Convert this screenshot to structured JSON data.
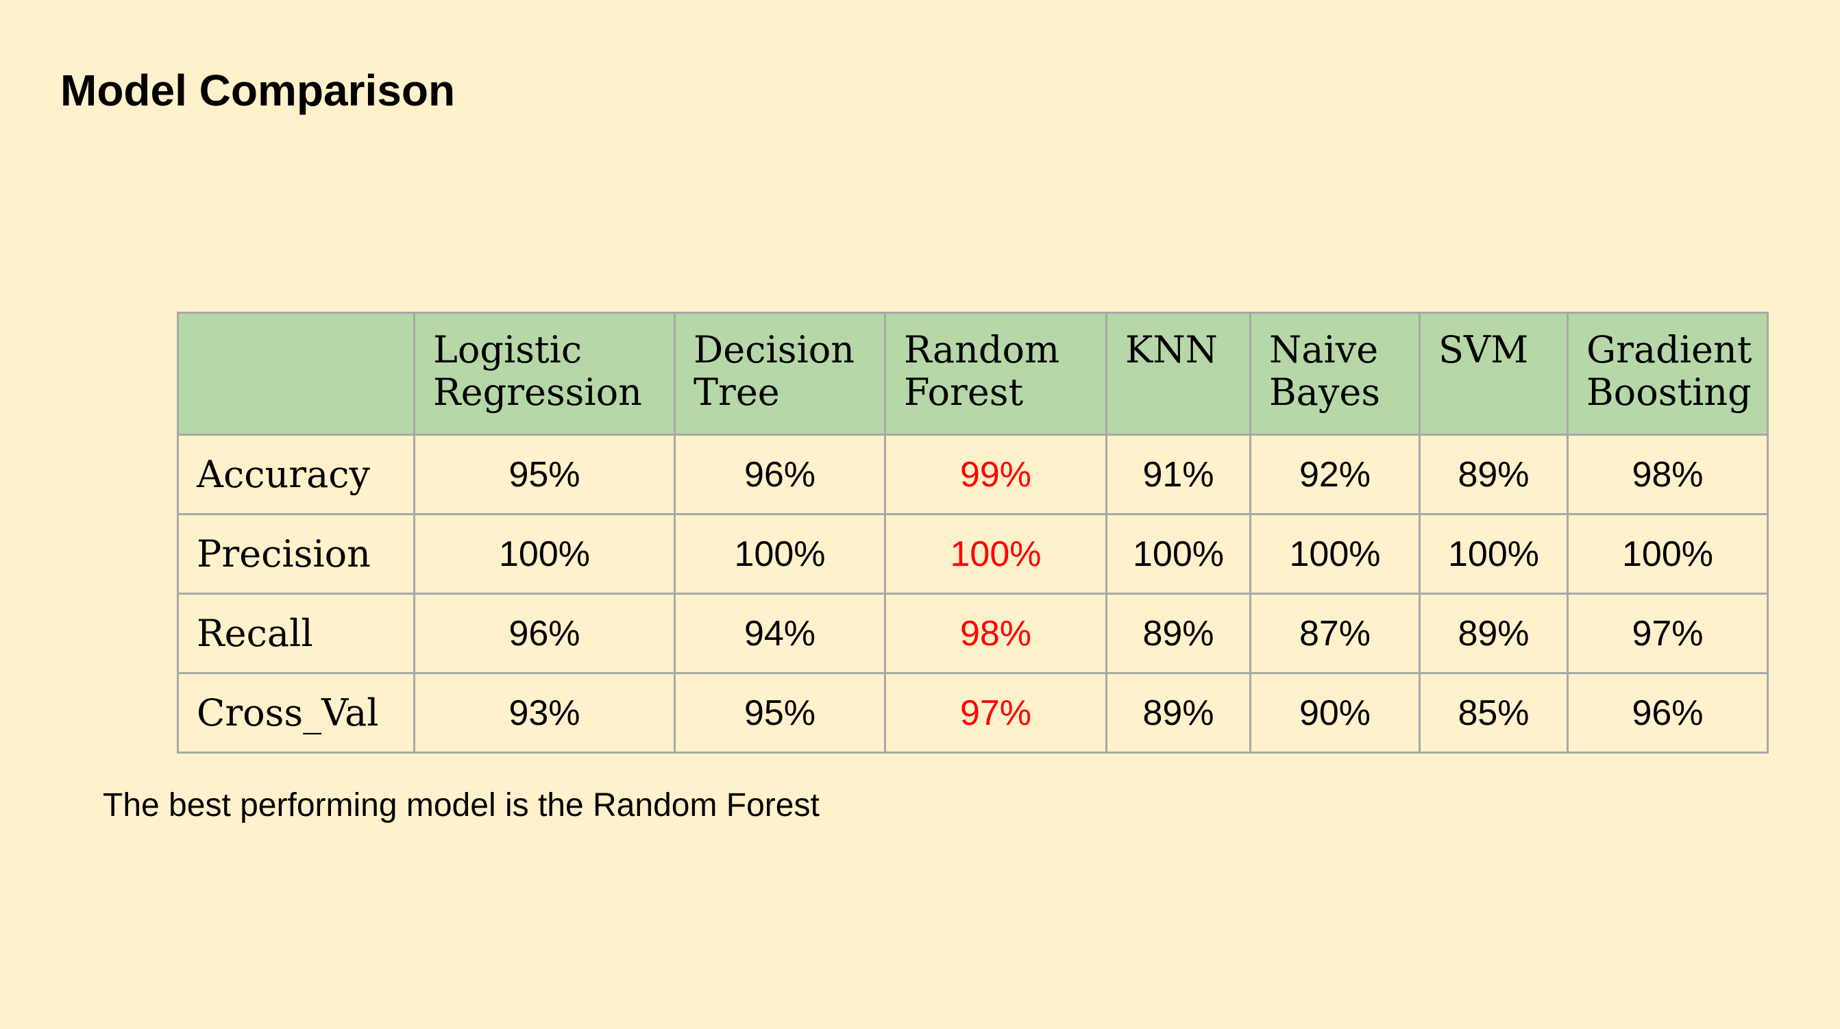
{
  "slide": {
    "title": "Model Comparison",
    "conclusion": "The best performing model is the Random Forest"
  },
  "table": {
    "corner_label": "",
    "columns": [
      "Logistic Regression",
      "Decision Tree",
      "Random Forest",
      "KNN",
      "Naive Bayes",
      "SVM",
      "Gradient Boosting"
    ],
    "rows": [
      {
        "label": "Accuracy",
        "values": [
          "95%",
          "96%",
          "99%",
          "91%",
          "92%",
          "89%",
          "98%"
        ]
      },
      {
        "label": "Precision",
        "values": [
          "100%",
          "100%",
          "100%",
          "100%",
          "100%",
          "100%",
          "100%"
        ]
      },
      {
        "label": "Recall",
        "values": [
          "96%",
          "94%",
          "98%",
          "89%",
          "87%",
          "89%",
          "97%"
        ]
      },
      {
        "label": "Cross_Val",
        "values": [
          "93%",
          "95%",
          "97%",
          "89%",
          "90%",
          "85%",
          "96%"
        ]
      }
    ]
  },
  "colors": {
    "background": "#fff1cc",
    "header_fill": "#b6d7a8",
    "grid_line": "#a8a8a8",
    "highlight_text": "#ff0000"
  }
}
